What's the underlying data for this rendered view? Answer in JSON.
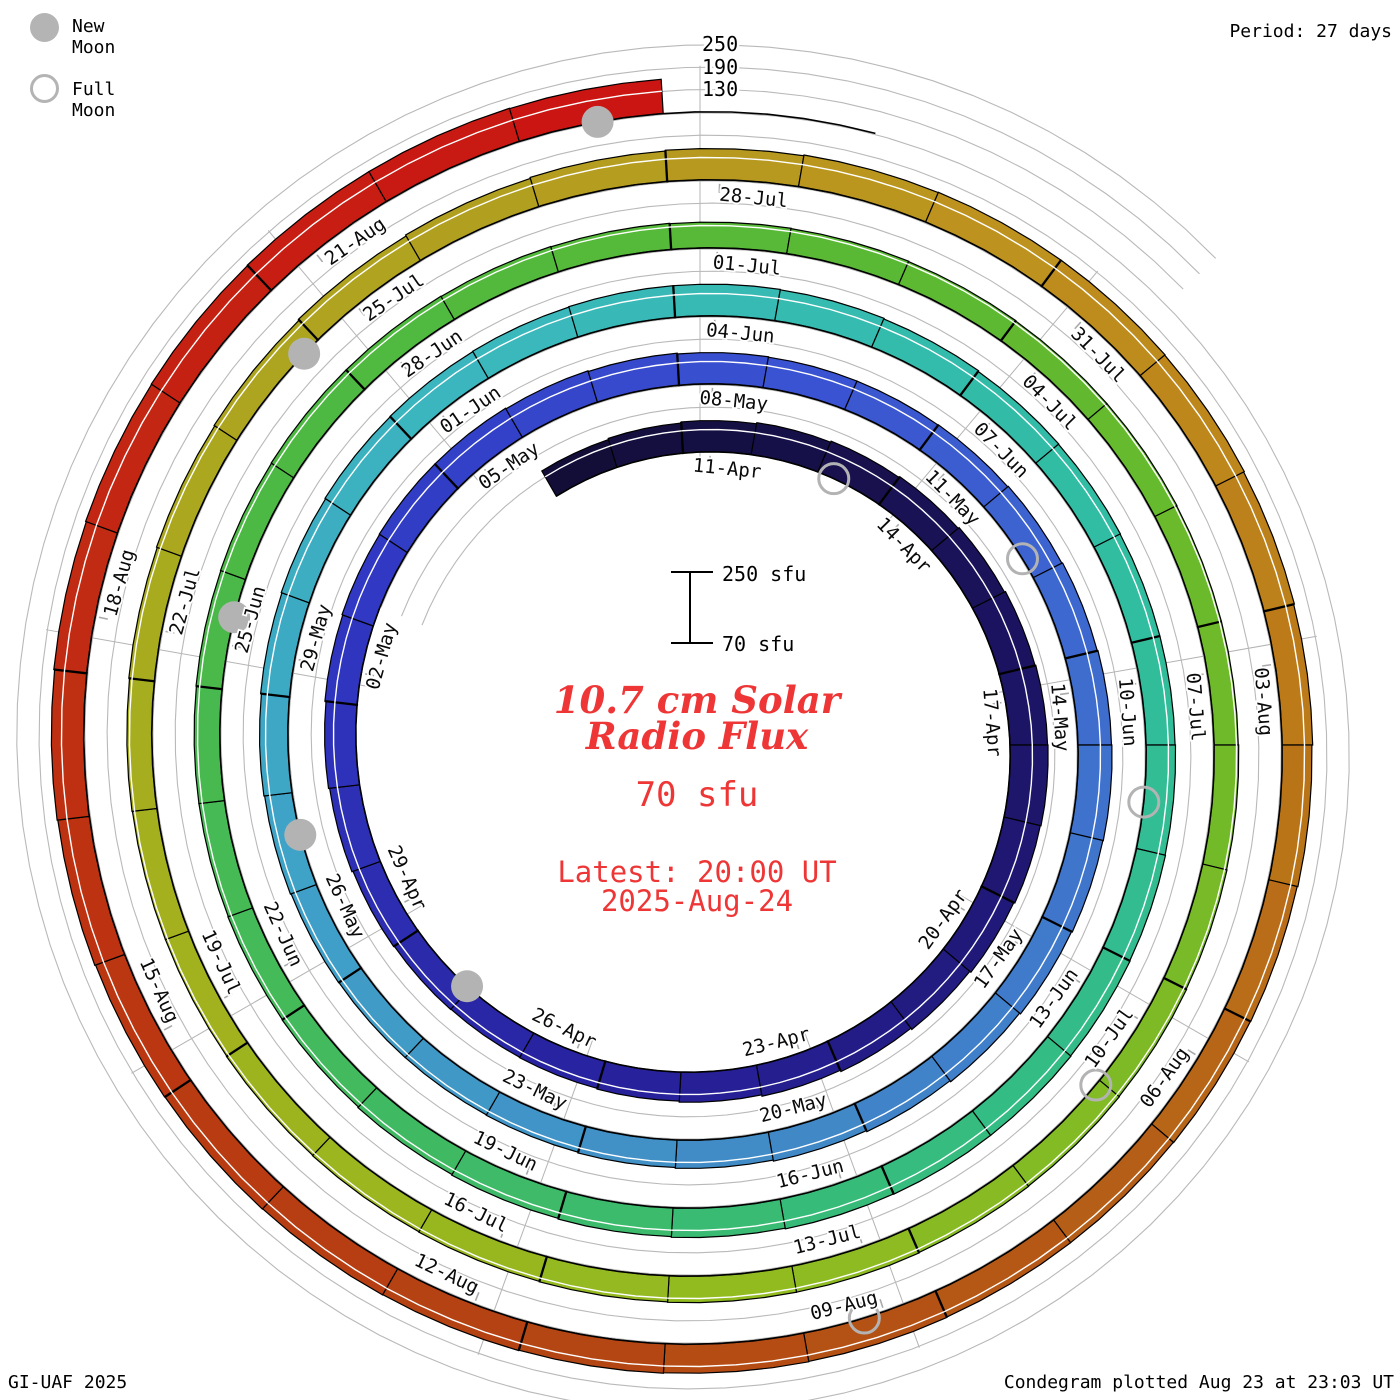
{
  "legend": {
    "new_moon": "New Moon",
    "full_moon": "Full Moon"
  },
  "header": {
    "period": "Period: 27 days"
  },
  "footer": {
    "credit": "GI-UAF 2025",
    "plotted": "Condegram plotted Aug 23 at 23:03 UT"
  },
  "center": {
    "title_line1": "10.7 cm Solar",
    "title_line2": "Radio Flux",
    "current_flux": "70 sfu",
    "latest_line1": "Latest: 20:00 UT",
    "latest_line2": "2025-Aug-24"
  },
  "scale_bar": {
    "top_label": "250 sfu",
    "bottom_label": "70 sfu"
  },
  "radial_ticks": [
    "250",
    "190",
    "130"
  ],
  "chart_data": {
    "type": "spiral_condegram",
    "title": "10.7 cm Solar Radio Flux",
    "units": "sfu",
    "period_days": 27,
    "baseline_sfu": 70,
    "gridline_levels_sfu": [
      130,
      190,
      250
    ],
    "series_start_date": "2025-04-09",
    "series_end_date": "2025-08-23",
    "label_dates": [
      "11-Apr",
      "14-Apr",
      "17-Apr",
      "20-Apr",
      "23-Apr",
      "26-Apr",
      "29-Apr",
      "02-May",
      "05-May",
      "08-May",
      "11-May",
      "14-May",
      "17-May",
      "20-May",
      "23-May",
      "26-May",
      "29-May",
      "01-Jun",
      "04-Jun",
      "07-Jun",
      "10-Jun",
      "13-Jun",
      "16-Jun",
      "19-Jun",
      "22-Jun",
      "25-Jun",
      "28-Jun",
      "01-Jul",
      "04-Jul",
      "07-Jul",
      "10-Jul",
      "13-Jul",
      "16-Jul",
      "19-Jul",
      "22-Jul",
      "25-Jul",
      "28-Jul",
      "31-Jul",
      "03-Aug",
      "06-Aug",
      "09-Aug",
      "12-Aug",
      "15-Aug",
      "18-Aug",
      "21-Aug"
    ],
    "daily_flux_sfu": [
      148,
      151,
      154,
      157,
      160,
      163,
      166,
      169,
      171,
      172,
      170,
      167,
      163,
      159,
      155,
      151,
      148,
      146,
      145,
      146,
      148,
      151,
      154,
      157,
      159,
      160,
      160,
      158,
      156,
      154,
      153,
      153,
      154,
      156,
      158,
      160,
      161,
      160,
      158,
      155,
      152,
      149,
      146,
      144,
      142,
      141,
      141,
      142,
      144,
      146,
      148,
      150,
      152,
      153,
      154,
      155,
      155,
      154,
      152,
      150,
      149,
      148,
      148,
      149,
      150,
      151,
      152,
      152,
      151,
      149,
      147,
      145,
      143,
      141,
      140,
      139,
      139,
      140,
      141,
      142,
      142,
      141,
      140,
      139,
      138,
      137,
      136,
      136,
      135,
      135,
      136,
      137,
      138,
      139,
      140,
      141,
      141,
      140,
      139,
      138,
      137,
      136,
      136,
      137,
      139,
      141,
      143,
      146,
      149,
      152,
      154,
      156,
      157,
      157,
      156,
      154,
      152,
      150,
      148,
      147,
      146,
      146,
      147,
      148,
      149,
      150,
      151,
      152,
      153,
      155,
      157,
      159,
      161,
      162,
      163,
      163,
      162
    ],
    "moons": {
      "full_dates": [
        "2025-04-13",
        "2025-05-12",
        "2025-06-11",
        "2025-07-10",
        "2025-08-09"
      ],
      "new_dates": [
        "2025-04-27",
        "2025-05-27",
        "2025-06-25",
        "2025-07-24",
        "2025-08-23"
      ],
      "full_days_from_start": [
        4.0,
        33.5,
        63.3,
        92.8,
        122.3
      ],
      "new_days_from_start": [
        18.8,
        48.3,
        77.4,
        106.6,
        136.3
      ]
    },
    "colors": {
      "grid": "#b9b9b9",
      "spoke": "#b4b4b4",
      "moon_gray": "#b3b3b3",
      "band_outline": "#000000",
      "accent_red_text": "#ee3636",
      "band_anchors": [
        [
          0,
          "#130e38"
        ],
        [
          8,
          "#1c1464"
        ],
        [
          16,
          "#27219c"
        ],
        [
          24,
          "#3038c4"
        ],
        [
          30,
          "#3a53d2"
        ],
        [
          36,
          "#3f72cd"
        ],
        [
          42,
          "#418cc6"
        ],
        [
          48,
          "#3fa3c8"
        ],
        [
          54,
          "#3ab8bc"
        ],
        [
          60,
          "#30bda4"
        ],
        [
          66,
          "#33bc84"
        ],
        [
          72,
          "#40ba62"
        ],
        [
          78,
          "#4cb945"
        ],
        [
          84,
          "#59b934"
        ],
        [
          90,
          "#73ba28"
        ],
        [
          96,
          "#92bb20"
        ],
        [
          102,
          "#a4b01e"
        ],
        [
          108,
          "#b1a01f"
        ],
        [
          112,
          "#bd921e"
        ],
        [
          116,
          "#bc7b18"
        ],
        [
          120,
          "#b55e17"
        ],
        [
          124,
          "#b34613"
        ],
        [
          129,
          "#bd3312"
        ],
        [
          133,
          "#c52113"
        ],
        [
          137,
          "#cb1112"
        ]
      ]
    }
  }
}
